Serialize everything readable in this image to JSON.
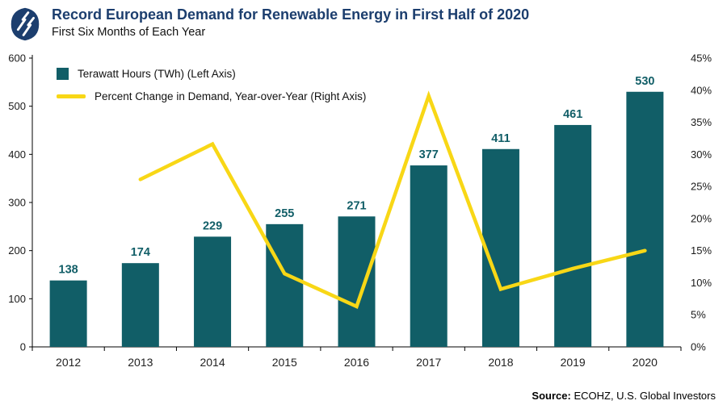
{
  "header": {
    "title": "Record European Demand for Renewable Energy in First Half of 2020",
    "subtitle": "First Six Months of Each Year"
  },
  "legend": {
    "bars": "Terawatt Hours (TWh) (Left Axis)",
    "line": "Percent Change in Demand, Year-over-Year (Right Axis)"
  },
  "source": {
    "label": "Source:",
    "text": " ECOHZ, U.S. Global Investors"
  },
  "colors": {
    "bar": "#115e67",
    "bar_label": "#115e67",
    "line": "#f8d716",
    "title": "#1c3e6e",
    "axis": "#000000",
    "tick_text": "#1a1a1a"
  },
  "chart_data": {
    "type": "bar+line",
    "title": "Record European Demand for Renewable Energy in First Half of 2020",
    "subtitle": "First Six Months of Each Year",
    "categories": [
      "2012",
      "2013",
      "2014",
      "2015",
      "2016",
      "2017",
      "2018",
      "2019",
      "2020"
    ],
    "series": [
      {
        "name": "Terawatt Hours (TWh)",
        "type": "bar",
        "axis": "left",
        "values": [
          138,
          174,
          229,
          255,
          271,
          377,
          411,
          461,
          530
        ]
      },
      {
        "name": "Percent Change in Demand, Year-over-Year",
        "type": "line",
        "axis": "right",
        "values": [
          null,
          26.1,
          31.6,
          11.4,
          6.3,
          39.1,
          9.0,
          12.2,
          15.0
        ]
      }
    ],
    "left_axis": {
      "min": 0,
      "max": 600,
      "step": 100
    },
    "right_axis": {
      "min": 0,
      "max": 45,
      "step": 5,
      "format": "percent"
    },
    "grid": false,
    "legend_position": "top-left-inside"
  }
}
